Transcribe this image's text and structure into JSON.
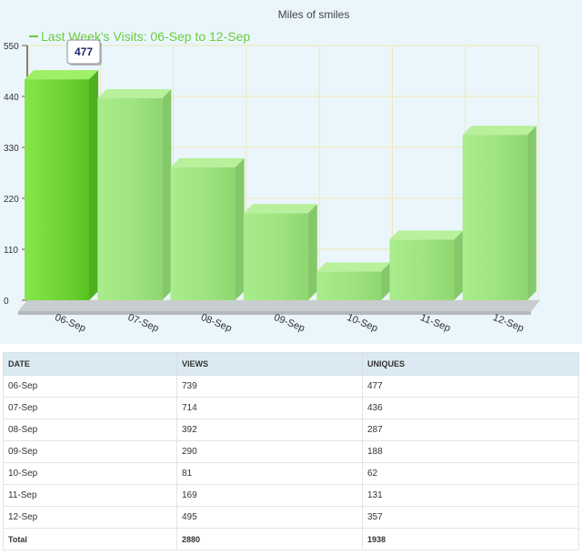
{
  "chart_data": {
    "type": "bar",
    "title": "Miles of smiles",
    "legend": {
      "label": "Last Week's Visits: 06-Sep to 12-Sep",
      "position": "top-left"
    },
    "categories": [
      "06-Sep",
      "07-Sep",
      "08-Sep",
      "09-Sep",
      "10-Sep",
      "11-Sep",
      "12-Sep"
    ],
    "series": [
      {
        "name": "Last Week's Visits: 06-Sep to 12-Sep",
        "values": [
          477,
          436,
          287,
          188,
          62,
          131,
          357
        ]
      }
    ],
    "y_ticks": [
      "0",
      "110",
      "220",
      "330",
      "440",
      "550"
    ],
    "ylim": [
      0,
      550
    ],
    "grid": true,
    "tooltip": {
      "category": "06-Sep",
      "text": "477"
    },
    "colors": {
      "bar": "#9fe57f",
      "bar_highlight": "#77dd3e",
      "legend": "#66cc33",
      "grid": "#f0e7b0",
      "background": "#eaf6fc"
    }
  },
  "table": {
    "headers": [
      "DATE",
      "VIEWS",
      "UNIQUES"
    ],
    "rows": [
      [
        "06-Sep",
        "739",
        "477"
      ],
      [
        "07-Sep",
        "714",
        "436"
      ],
      [
        "08-Sep",
        "392",
        "287"
      ],
      [
        "09-Sep",
        "290",
        "188"
      ],
      [
        "10-Sep",
        "81",
        "62"
      ],
      [
        "11-Sep",
        "169",
        "131"
      ],
      [
        "12-Sep",
        "495",
        "357"
      ]
    ],
    "total": [
      "Total",
      "2880",
      "1938"
    ]
  }
}
